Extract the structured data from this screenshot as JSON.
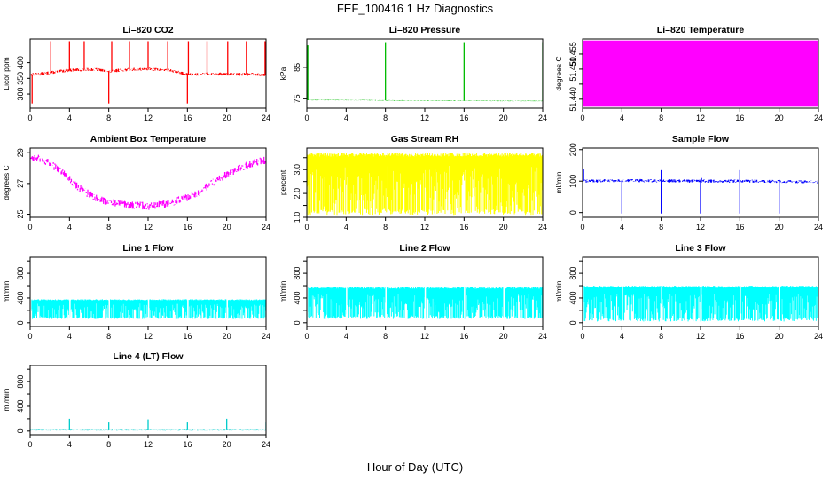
{
  "figure": {
    "title": "FEF_100416  1 Hz Diagnostics",
    "xlabel": "Hour of Day (UTC)"
  },
  "chart_data": [
    {
      "type": "line",
      "title": "Li–820 CO2",
      "ylabel": "Licor ppm",
      "color": "#ff0000",
      "xlim": [
        0,
        24
      ],
      "xticks": [
        0,
        4,
        8,
        12,
        16,
        20,
        24
      ],
      "ylim": [
        255,
        475
      ],
      "yticks": [
        300,
        350,
        400
      ],
      "x": [
        0,
        1,
        2,
        3,
        4,
        5,
        6,
        7,
        8,
        9,
        10,
        11,
        12,
        13,
        14,
        15,
        16,
        17,
        18,
        19,
        20,
        21,
        22,
        23,
        24
      ],
      "y": [
        362,
        364,
        368,
        372,
        376,
        377,
        378,
        378,
        370,
        376,
        378,
        379,
        380,
        378,
        376,
        370,
        362,
        363,
        364,
        364,
        363,
        363,
        363,
        363,
        362
      ],
      "band": 10,
      "spikes": [
        {
          "x": 0.2,
          "y": 270
        },
        {
          "x": 2.1,
          "y": 468
        },
        {
          "x": 4.0,
          "y": 468
        },
        {
          "x": 5.5,
          "y": 468
        },
        {
          "x": 8.0,
          "y": 270
        },
        {
          "x": 8.3,
          "y": 468
        },
        {
          "x": 10.1,
          "y": 468
        },
        {
          "x": 12.0,
          "y": 468
        },
        {
          "x": 14.0,
          "y": 468
        },
        {
          "x": 16.0,
          "y": 270
        },
        {
          "x": 16.1,
          "y": 468
        },
        {
          "x": 18.0,
          "y": 468
        },
        {
          "x": 20.1,
          "y": 468
        },
        {
          "x": 22.0,
          "y": 468
        },
        {
          "x": 23.9,
          "y": 468
        }
      ]
    },
    {
      "type": "line",
      "title": "Li–820 Pressure",
      "ylabel": "kPa",
      "color": "#00bb00",
      "xlim": [
        0,
        24
      ],
      "xticks": [
        0,
        4,
        8,
        12,
        16,
        20,
        24
      ],
      "ylim": [
        72,
        94
      ],
      "yticks": [
        75,
        85
      ],
      "x": [
        0,
        4,
        8,
        12,
        16,
        20,
        24
      ],
      "y": [
        74.6,
        74.6,
        74.5,
        74.4,
        74.4,
        74.3,
        74.3
      ],
      "band": 0.2,
      "spikes": [
        {
          "x": 0.1,
          "y": 92
        },
        {
          "x": 8.0,
          "y": 93
        },
        {
          "x": 16.0,
          "y": 93
        },
        {
          "x": 24.0,
          "y": 93
        }
      ]
    },
    {
      "type": "area",
      "title": "Li–820 Temperature",
      "ylabel": "degrees C",
      "color": "#ff00ff",
      "xlim": [
        0,
        24
      ],
      "xticks": [
        0,
        4,
        8,
        12,
        16,
        20,
        24
      ],
      "ylim": [
        51.437,
        51.46
      ],
      "yticks": [
        51.44,
        51.445,
        51.45,
        51.455
      ],
      "ytick_labels": [
        "51.440",
        "",
        "51.450",
        "51.455"
      ],
      "fill_range": [
        51.4375,
        51.4595
      ]
    },
    {
      "type": "line",
      "title": "Ambient Box Temperature",
      "ylabel": "degrees C",
      "color": "#ff00ff",
      "xlim": [
        0,
        24
      ],
      "xticks": [
        0,
        4,
        8,
        12,
        16,
        20,
        24
      ],
      "ylim": [
        24.8,
        29.3
      ],
      "yticks": [
        25,
        27,
        29
      ],
      "x": [
        0,
        1,
        2,
        3,
        4,
        5,
        6,
        7,
        8,
        9,
        10,
        11,
        12,
        13,
        14,
        15,
        16,
        17,
        18,
        19,
        20,
        21,
        22,
        23,
        24
      ],
      "y": [
        28.7,
        28.6,
        28.3,
        27.9,
        27.3,
        26.7,
        26.3,
        26.0,
        25.8,
        25.7,
        25.6,
        25.6,
        25.5,
        25.6,
        25.7,
        25.9,
        26.1,
        26.4,
        26.8,
        27.2,
        27.6,
        27.9,
        28.2,
        28.4,
        28.5
      ],
      "band": 0.5
    },
    {
      "type": "area",
      "title": "Gas Stream RH",
      "ylabel": "percent",
      "color": "#ffff00",
      "xlim": [
        0,
        24
      ],
      "xticks": [
        0,
        4,
        8,
        12,
        16,
        20,
        24
      ],
      "ylim": [
        1.0,
        3.9
      ],
      "yticks": [
        1.0,
        1.5,
        2.0,
        2.5,
        3.0,
        3.5
      ],
      "ytick_labels": [
        "1.0",
        "",
        "2.0",
        "",
        "3.0",
        ""
      ],
      "x": [
        0,
        4,
        8,
        12,
        16,
        20,
        24
      ],
      "y": [
        3.7,
        3.7,
        3.7,
        3.7,
        3.7,
        3.7,
        3.7
      ],
      "low": 1.1
    },
    {
      "type": "line",
      "title": "Sample Flow",
      "ylabel": "ml/min",
      "color": "#0000ff",
      "xlim": [
        0,
        24
      ],
      "xticks": [
        0,
        4,
        8,
        12,
        16,
        20,
        24
      ],
      "ylim": [
        -15,
        205
      ],
      "yticks": [
        0,
        100,
        200
      ],
      "x": [
        0,
        4,
        8,
        12,
        16,
        20,
        24
      ],
      "y": [
        100,
        102,
        101,
        100,
        100,
        99,
        98
      ],
      "band": 10,
      "spikes": [
        {
          "x": 0.1,
          "y": 140
        },
        {
          "x": 4.0,
          "y": -3
        },
        {
          "x": 8.0,
          "y": -3
        },
        {
          "x": 8.0,
          "y": 135
        },
        {
          "x": 12.0,
          "y": -3
        },
        {
          "x": 12.1,
          "y": 110
        },
        {
          "x": 16.0,
          "y": -3
        },
        {
          "x": 16.0,
          "y": 135
        },
        {
          "x": 20.0,
          "y": -3
        },
        {
          "x": 24.0,
          "y": -3
        }
      ]
    },
    {
      "type": "area",
      "title": "Line 1 Flow",
      "ylabel": "ml/min",
      "color": "#00ffff",
      "xlim": [
        0,
        24
      ],
      "xticks": [
        0,
        4,
        8,
        12,
        16,
        20,
        24
      ],
      "ylim": [
        -60,
        1060
      ],
      "yticks": [
        0,
        200,
        400,
        600,
        800,
        1000
      ],
      "ytick_labels": [
        "0",
        "",
        "400",
        "",
        "800",
        ""
      ],
      "x": [
        0,
        4,
        8,
        12,
        16,
        20,
        24
      ],
      "y": [
        380,
        380,
        380,
        380,
        380,
        380,
        380
      ],
      "low": 60,
      "gaps": [
        0,
        4,
        8,
        12,
        16,
        20
      ]
    },
    {
      "type": "area",
      "title": "Line 2 Flow",
      "ylabel": "ml/min",
      "color": "#00ffff",
      "xlim": [
        0,
        24
      ],
      "xticks": [
        0,
        4,
        8,
        12,
        16,
        20,
        24
      ],
      "ylim": [
        -60,
        1060
      ],
      "yticks": [
        0,
        200,
        400,
        600,
        800,
        1000
      ],
      "ytick_labels": [
        "0",
        "",
        "400",
        "",
        "800",
        ""
      ],
      "x": [
        0,
        4,
        8,
        12,
        16,
        20,
        24
      ],
      "y": [
        580,
        580,
        580,
        580,
        580,
        580,
        580
      ],
      "low": 60,
      "gaps": [
        0,
        4,
        8,
        12,
        16,
        20
      ]
    },
    {
      "type": "area",
      "title": "Line 3 Flow",
      "ylabel": "ml/min",
      "color": "#00ffff",
      "xlim": [
        0,
        24
      ],
      "xticks": [
        0,
        4,
        8,
        12,
        16,
        20,
        24
      ],
      "ylim": [
        -60,
        1060
      ],
      "yticks": [
        0,
        200,
        400,
        600,
        800,
        1000
      ],
      "ytick_labels": [
        "0",
        "",
        "400",
        "",
        "800",
        ""
      ],
      "x": [
        0,
        4,
        8,
        12,
        16,
        20,
        24
      ],
      "y": [
        600,
        600,
        600,
        600,
        600,
        600,
        600
      ],
      "low": 20,
      "gaps": [
        0,
        4,
        8,
        12,
        16,
        20
      ]
    },
    {
      "type": "line",
      "title": "Line 4 (LT) Flow",
      "ylabel": "ml/min",
      "color": "#00cccc",
      "xlim": [
        0,
        24
      ],
      "xticks": [
        0,
        4,
        8,
        12,
        16,
        20,
        24
      ],
      "ylim": [
        -60,
        1060
      ],
      "yticks": [
        0,
        200,
        400,
        600,
        800,
        1000
      ],
      "ytick_labels": [
        "0",
        "",
        "400",
        "",
        "800",
        ""
      ],
      "x": [
        0,
        24
      ],
      "y": [
        15,
        15
      ],
      "band": 12,
      "spikes": [
        {
          "x": 4.0,
          "y": 200
        },
        {
          "x": 8.0,
          "y": 140
        },
        {
          "x": 12.0,
          "y": 190
        },
        {
          "x": 16.0,
          "y": 140
        },
        {
          "x": 20.0,
          "y": 200
        },
        {
          "x": 24.0,
          "y": 140
        }
      ]
    }
  ]
}
